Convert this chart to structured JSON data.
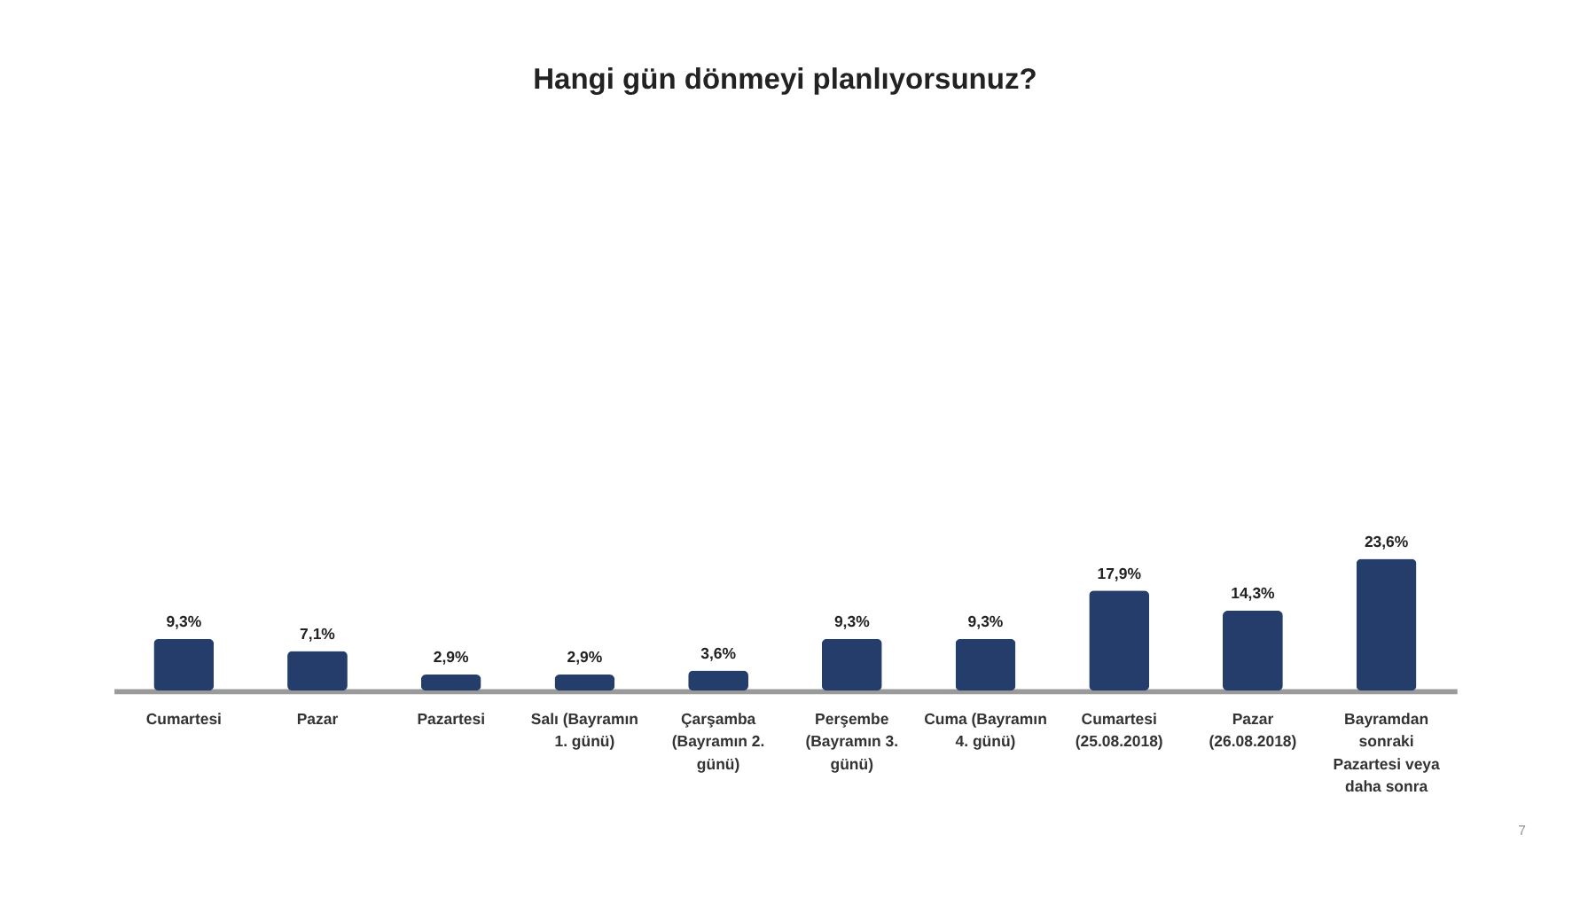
{
  "chart_data": {
    "type": "bar",
    "title": "Hangi gün dönmeyi planlıyorsunuz?",
    "categories": [
      "Cumartesi",
      "Pazar",
      "Pazartesi",
      "Salı (Bayramın 1. günü)",
      "Çarşamba (Bayramın 2. günü)",
      "Perşembe (Bayramın 3. günü)",
      "Cuma (Bayramın 4. günü)",
      "Cumartesi (25.08.2018)",
      "Pazar (26.08.2018)",
      "Bayramdan sonraki Pazartesi veya daha sonra"
    ],
    "values": [
      9.3,
      7.1,
      2.9,
      2.9,
      3.6,
      9.3,
      9.3,
      17.9,
      14.3,
      23.6
    ],
    "value_labels": [
      "9,3%",
      "7,1%",
      "2,9%",
      "2,9%",
      "3,6%",
      "9,3%",
      "9,3%",
      "17,9%",
      "14,3%",
      "23,6%"
    ],
    "color": "#253d6b",
    "annotations": [
      "7"
    ]
  }
}
